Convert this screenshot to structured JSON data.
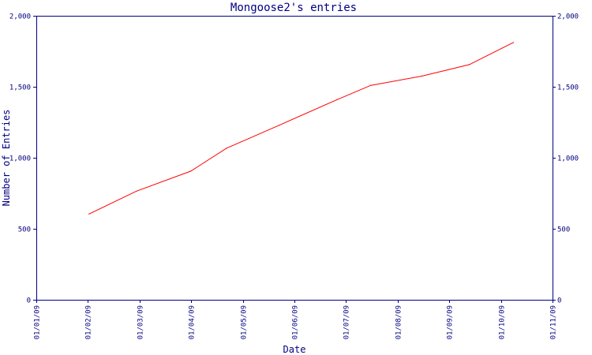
{
  "colors": {
    "axis": "#000080",
    "text": "#000080",
    "series": "#ff0000",
    "background": "#ffffff"
  },
  "chart_data": {
    "type": "line",
    "title": "Mongoose2's entries",
    "xlabel": "Date",
    "ylabel": "Number of Entries",
    "x_ticks": [
      "01/01/09",
      "01/02/09",
      "01/03/09",
      "01/04/09",
      "01/05/09",
      "01/06/09",
      "01/07/09",
      "01/08/09",
      "01/09/09",
      "01/10/09",
      "01/11/09"
    ],
    "y_ticks": [
      "0",
      "500",
      "1,000",
      "1,500",
      "2,000"
    ],
    "y_tick_values": [
      0,
      500,
      1000,
      1500,
      2000
    ],
    "xlim": [
      "2009-01-01",
      "2009-11-01"
    ],
    "ylim": [
      0,
      2000
    ],
    "grid": false,
    "legend": "none",
    "series": [
      {
        "color": "#ff0000",
        "x": [
          "2009-02-01",
          "2009-03-01",
          "2009-04-02",
          "2009-04-23",
          "2009-05-24",
          "2009-06-27",
          "2009-07-17",
          "2009-08-16",
          "2009-09-13",
          "2009-10-09"
        ],
        "y": [
          604,
          765,
          906,
          1067,
          1229,
          1409,
          1510,
          1575,
          1656,
          1812
        ]
      }
    ]
  }
}
